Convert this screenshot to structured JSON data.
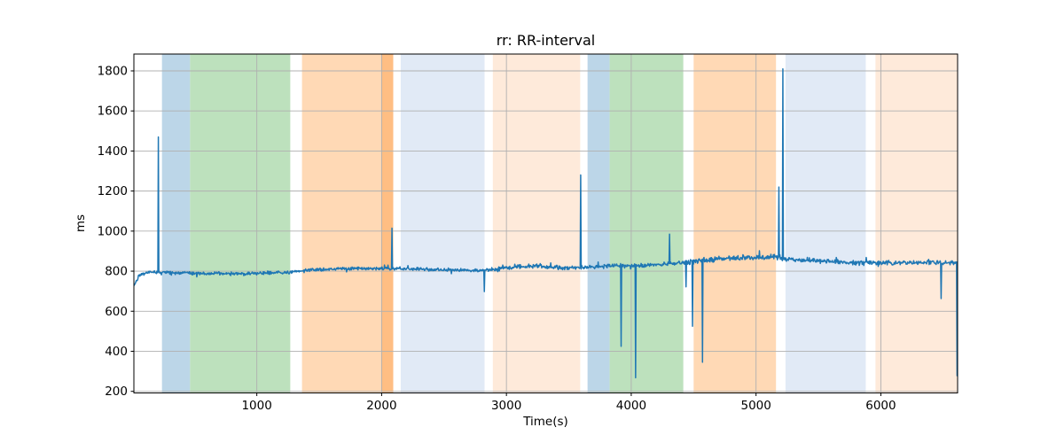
{
  "figure": {
    "title": "rr: RR-interval",
    "xlabel": "Time(s)",
    "ylabel": "ms"
  },
  "colors": {
    "background": "#ffffff",
    "grid": "#b0b0b0",
    "spine": "#000000",
    "tick_text": "#000000",
    "line": "#1f77b4"
  },
  "chart_data": {
    "type": "line",
    "title": "rr: RR-interval",
    "xlabel": "Time(s)",
    "ylabel": "ms",
    "xlim": [
      15,
      6615
    ],
    "ylim": [
      192,
      1884
    ],
    "xticks": [
      1000,
      2000,
      3000,
      4000,
      5000,
      6000
    ],
    "yticks": [
      200,
      400,
      600,
      800,
      1000,
      1200,
      1400,
      1600,
      1800
    ],
    "grid": true,
    "legend": "none",
    "series_name": "rr",
    "line_color": "#1f77b4",
    "line_width": 1.5,
    "sample_step_s": 4,
    "baseline_anchors": [
      [
        15,
        725
      ],
      [
        60,
        780
      ],
      [
        150,
        792
      ],
      [
        500,
        787
      ],
      [
        900,
        786
      ],
      [
        1250,
        790
      ],
      [
        1400,
        800
      ],
      [
        1700,
        808
      ],
      [
        2100,
        812
      ],
      [
        2500,
        812
      ],
      [
        2800,
        808
      ],
      [
        2900,
        812
      ],
      [
        3100,
        826
      ],
      [
        3250,
        828
      ],
      [
        3450,
        818
      ],
      [
        3650,
        822
      ],
      [
        3850,
        830
      ],
      [
        4100,
        832
      ],
      [
        4350,
        840
      ],
      [
        4500,
        850
      ],
      [
        4700,
        858
      ],
      [
        4950,
        862
      ],
      [
        5150,
        868
      ],
      [
        5300,
        852
      ],
      [
        5600,
        845
      ],
      [
        5900,
        840
      ],
      [
        6200,
        842
      ],
      [
        6450,
        838
      ],
      [
        6615,
        840
      ]
    ],
    "noise_segments": [
      {
        "t0": 15,
        "t1": 2850,
        "amp": 9
      },
      {
        "t0": 2850,
        "t1": 4450,
        "amp": 12
      },
      {
        "t0": 4450,
        "t1": 5250,
        "amp": 16
      },
      {
        "t0": 5250,
        "t1": 6615,
        "amp": 13
      }
    ],
    "wander_amplitude": 4,
    "anomalies": [
      {
        "t": 210,
        "value": 1470
      },
      {
        "t": 2084,
        "value": 1015
      },
      {
        "t": 2822,
        "value": 698
      },
      {
        "t": 3596,
        "value": 1280
      },
      {
        "t": 3917,
        "value": 425
      },
      {
        "t": 4035,
        "value": 268
      },
      {
        "t": 4306,
        "value": 985
      },
      {
        "t": 4440,
        "value": 722
      },
      {
        "t": 4489,
        "value": 525
      },
      {
        "t": 4571,
        "value": 345
      },
      {
        "t": 5183,
        "value": 1220
      },
      {
        "t": 5214,
        "value": 1810
      },
      {
        "t": 6484,
        "value": 663
      },
      {
        "t": 6612,
        "value": 278
      }
    ],
    "bands": [
      {
        "t0": 240,
        "t1": 465,
        "color": "#bcd6e8",
        "label": "blue-span-1"
      },
      {
        "t0": 465,
        "t1": 1268,
        "color": "#bde1bd",
        "label": "green-span-1"
      },
      {
        "t0": 1362,
        "t1": 2093,
        "color": "#ffd9b5",
        "label": "orange-span-1"
      },
      {
        "t0": 2000,
        "t1": 2093,
        "color": "#ffbe83",
        "label": "orange-span-overlap"
      },
      {
        "t0": 2153,
        "t1": 2825,
        "color": "#e1eaf6",
        "label": "pale-blue-span-1"
      },
      {
        "t0": 2891,
        "t1": 3591,
        "color": "#feeada",
        "label": "pale-orange-span-1"
      },
      {
        "t0": 3650,
        "t1": 3827,
        "color": "#bcd6e8",
        "label": "blue-span-2"
      },
      {
        "t0": 3827,
        "t1": 4417,
        "color": "#bde1bd",
        "label": "green-span-2"
      },
      {
        "t0": 4500,
        "t1": 5160,
        "color": "#ffd9b5",
        "label": "orange-span-2"
      },
      {
        "t0": 5236,
        "t1": 5879,
        "color": "#e1eaf6",
        "label": "pale-blue-span-2"
      },
      {
        "t0": 5957,
        "t1": 6615,
        "color": "#feeada",
        "label": "pale-orange-span-2"
      }
    ]
  }
}
